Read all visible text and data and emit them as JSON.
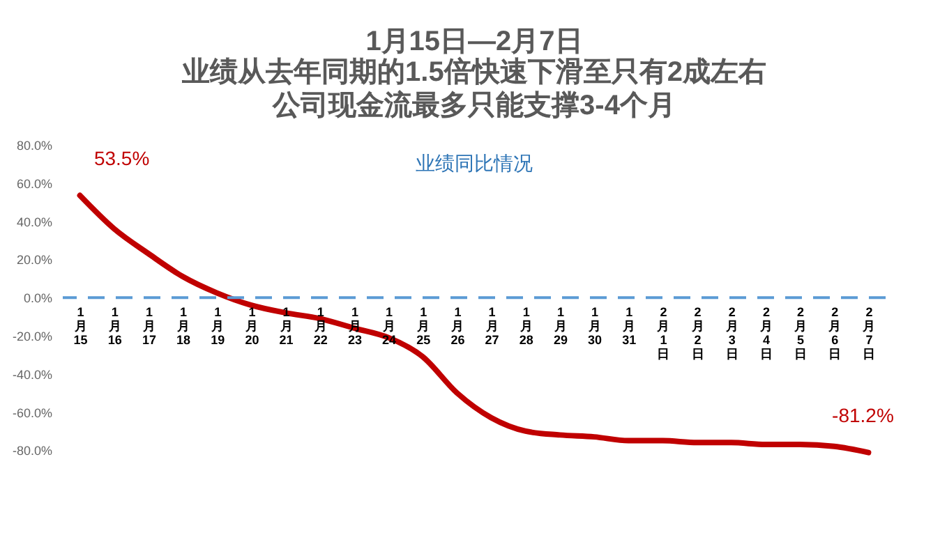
{
  "chart_data": {
    "type": "line",
    "title": "1月15日—2月7日",
    "subtitle": "业绩从去年同期的1.5倍快速下滑至只有2成左右",
    "categories": [
      "1月15",
      "1月16",
      "1月17",
      "1月18",
      "1月19",
      "1月20",
      "1月21",
      "1月22",
      "1月23",
      "1月24",
      "1月25",
      "1月26",
      "1月27",
      "1月28",
      "1月29",
      "1月30",
      "1月31",
      "2月1日",
      "2月2日",
      "2月3日",
      "2月4日",
      "2月5日",
      "2月6日",
      "2月7日"
    ],
    "series": [
      {
        "color": "#c00000",
        "values": [
          53.5,
          36,
          23,
          11,
          2.4,
          -4,
          -8,
          -11,
          -16,
          -21,
          -31,
          -50,
          -63,
          -70,
          -72,
          -73,
          -75,
          -75,
          -76,
          -76,
          -77,
          -77,
          -78,
          -81.2
        ]
      }
    ],
    "ylim": [
      -85,
      80
    ],
    "yticks": [
      {
        "value": -80,
        "label": "-80.0%"
      },
      {
        "value": -60,
        "label": "-60.0%"
      },
      {
        "value": -40,
        "label": "-40.0%"
      },
      {
        "value": -20,
        "label": "-20.0%"
      },
      {
        "value": 0,
        "label": "0.0%"
      },
      {
        "value": 20,
        "label": "20.0%"
      },
      {
        "value": 40,
        "label": "40.0%"
      },
      {
        "value": 60,
        "label": "60.0%"
      },
      {
        "value": 80,
        "label": "80.0%"
      }
    ],
    "ref_lines": [
      {
        "axis": "y",
        "value": 0,
        "color": "#5b9bd5",
        "line_style": "dashed"
      }
    ],
    "annotations": [
      "公司现金流最多只能支撑3-4个月",
      "业绩同比情况",
      {
        "text": "53.5%",
        "x": "1月15",
        "y": 53.5
      },
      {
        "text": "-81.2%",
        "x": "2月7日",
        "y": -81.2
      }
    ],
    "grid": false,
    "legend": false,
    "marker": "none",
    "line_style": "solid"
  }
}
